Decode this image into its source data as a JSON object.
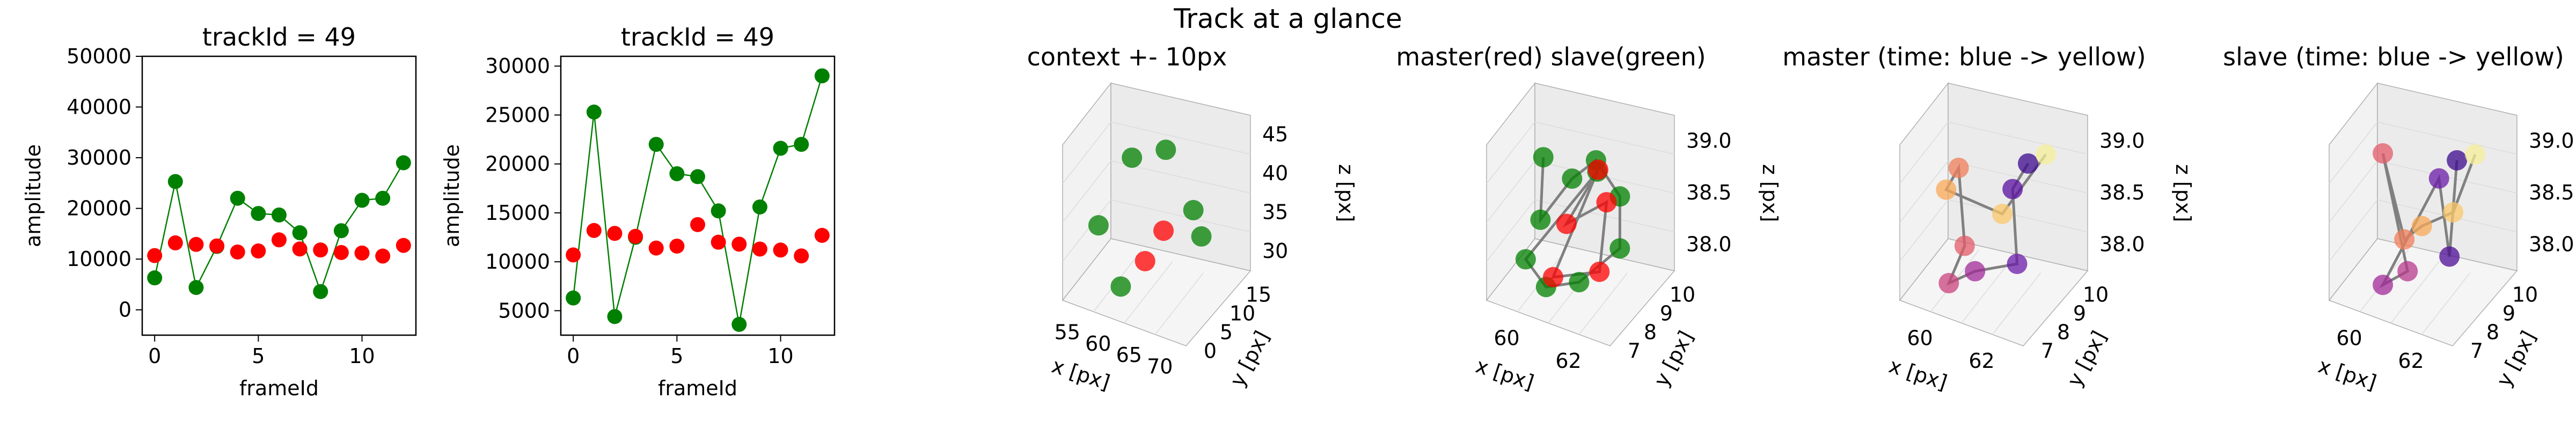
{
  "figure": {
    "suptitle": "Track at a glance"
  },
  "chart_data": [
    {
      "type": "line",
      "title": "trackId = 49",
      "xlabel": "frameId",
      "ylabel": "amplitude",
      "xlim": [
        -0.6,
        12.6
      ],
      "ylim": [
        -5000,
        50000
      ],
      "xticks": [
        0,
        5,
        10
      ],
      "yticks": [
        0,
        10000,
        20000,
        30000,
        40000,
        50000
      ],
      "x": [
        0,
        1,
        2,
        3,
        4,
        5,
        6,
        7,
        8,
        9,
        10,
        11,
        12
      ],
      "series": [
        {
          "color": "#008000",
          "line": true,
          "values": [
            6300,
            25300,
            4400,
            12500,
            22000,
            19000,
            18700,
            15200,
            3600,
            15600,
            21600,
            22000,
            29000
          ]
        },
        {
          "color": "#ff0000",
          "line": false,
          "values": [
            10700,
            13200,
            12900,
            12600,
            11400,
            11600,
            13800,
            12000,
            11800,
            11300,
            11200,
            10600,
            12700
          ]
        }
      ]
    },
    {
      "type": "line",
      "title": "trackId = 49",
      "xlabel": "frameId",
      "ylabel": "amplitude",
      "xlim": [
        -0.6,
        12.6
      ],
      "ylim": [
        2500,
        31000
      ],
      "xticks": [
        0,
        5,
        10
      ],
      "yticks": [
        5000,
        10000,
        15000,
        20000,
        25000,
        30000
      ],
      "x": [
        0,
        1,
        2,
        3,
        4,
        5,
        6,
        7,
        8,
        9,
        10,
        11,
        12
      ],
      "series": [
        {
          "color": "#008000",
          "line": true,
          "values": [
            6300,
            25300,
            4400,
            12500,
            22000,
            19000,
            18700,
            15200,
            3600,
            15600,
            21600,
            22000,
            29000
          ]
        },
        {
          "color": "#ff0000",
          "line": false,
          "values": [
            10700,
            13200,
            12900,
            12600,
            11400,
            11600,
            13800,
            12000,
            11800,
            11300,
            11200,
            10600,
            12700
          ]
        }
      ]
    },
    {
      "type": "scatter",
      "title": "context +- 10px",
      "xlabel": "x [px]",
      "ylabel": "y [px]",
      "zlabel": "z [px]",
      "xticks": [
        "55",
        "60",
        "65",
        "70"
      ],
      "yticks": [
        "0",
        "5",
        "10",
        "15"
      ],
      "zticks": [
        "30",
        "35",
        "40",
        "45"
      ],
      "points": [
        {
          "x": 60.8,
          "y": 8.6,
          "z": 38.2,
          "color": "#ff0000"
        },
        {
          "x": 61.5,
          "y": 8.2,
          "z": 38.6,
          "color": "#ff0000"
        },
        {
          "x": 60.2,
          "y": 9.1,
          "z": 38.9,
          "color": "#008000"
        },
        {
          "x": 61.0,
          "y": 9.4,
          "z": 39.0,
          "color": "#008000"
        },
        {
          "x": 62.0,
          "y": 8.9,
          "z": 38.7,
          "color": "#008000"
        },
        {
          "x": 59.6,
          "y": 8.4,
          "z": 38.4,
          "color": "#008000"
        },
        {
          "x": 60.5,
          "y": 7.8,
          "z": 38.1,
          "color": "#008000"
        },
        {
          "x": 61.8,
          "y": 9.8,
          "z": 38.3,
          "color": "#008000"
        }
      ]
    },
    {
      "type": "scatter",
      "title": "master(red) slave(green)",
      "xlabel": "x [px]",
      "ylabel": "y [px]",
      "zlabel": "z [px]",
      "xticks": [
        "60",
        "62"
      ],
      "yticks": [
        "7",
        "8",
        "9",
        "10"
      ],
      "zticks": [
        "38.0",
        "38.5",
        "39.0"
      ],
      "points": [
        {
          "x": 58.5,
          "y": 9.6,
          "z": 38.8,
          "color": "#008000"
        },
        {
          "x": 59.3,
          "y": 8.2,
          "z": 38.4,
          "color": "#008000"
        },
        {
          "x": 60.4,
          "y": 8.8,
          "z": 38.9,
          "color": "#008000"
        },
        {
          "x": 61.2,
          "y": 9.3,
          "z": 39.1,
          "color": "#008000"
        },
        {
          "x": 62.0,
          "y": 9.8,
          "z": 38.6,
          "color": "#008000"
        },
        {
          "x": 62.6,
          "y": 8.9,
          "z": 38.2,
          "color": "#008000"
        },
        {
          "x": 61.4,
          "y": 7.8,
          "z": 37.9,
          "color": "#008000"
        },
        {
          "x": 60.1,
          "y": 7.4,
          "z": 37.8,
          "color": "#008000"
        },
        {
          "x": 59.0,
          "y": 7.6,
          "z": 38.0,
          "color": "#008000"
        },
        {
          "x": 61.8,
          "y": 8.5,
          "z": 39.2,
          "color": "#008000"
        },
        {
          "x": 60.6,
          "y": 8.1,
          "z": 38.5,
          "color": "#ff0000"
        },
        {
          "x": 61.9,
          "y": 9.0,
          "z": 38.7,
          "color": "#ff0000"
        },
        {
          "x": 62.3,
          "y": 7.9,
          "z": 38.1,
          "color": "#ff0000"
        },
        {
          "x": 60.3,
          "y": 7.6,
          "z": 37.9,
          "color": "#ff0000"
        },
        {
          "x": 61.1,
          "y": 9.6,
          "z": 38.9,
          "color": "#ff0000"
        }
      ]
    },
    {
      "type": "scatter",
      "title": "master (time: blue -> yellow)",
      "xlabel": "x [px]",
      "ylabel": "y [px]",
      "zlabel": "z [px]",
      "xticks": [
        "60",
        "62"
      ],
      "yticks": [
        "7",
        "8",
        "9",
        "10"
      ],
      "zticks": [
        "38.0",
        "38.5",
        "39.0"
      ],
      "points": [
        {
          "x": 62.2,
          "y": 9.4,
          "z": 39.0,
          "color": "#3b0a8c"
        },
        {
          "x": 62.0,
          "y": 8.8,
          "z": 38.8,
          "color": "#5a0fa0"
        },
        {
          "x": 62.4,
          "y": 8.2,
          "z": 38.1,
          "color": "#6a1ba8"
        },
        {
          "x": 61.4,
          "y": 7.6,
          "z": 38.0,
          "color": "#a22a98"
        },
        {
          "x": 60.7,
          "y": 7.4,
          "z": 37.8,
          "color": "#c9417c"
        },
        {
          "x": 61.0,
          "y": 7.8,
          "z": 38.2,
          "color": "#e35b68"
        },
        {
          "x": 60.2,
          "y": 9.2,
          "z": 38.7,
          "color": "#f07d5a"
        },
        {
          "x": 60.0,
          "y": 8.8,
          "z": 38.5,
          "color": "#f9a857"
        },
        {
          "x": 61.6,
          "y": 9.0,
          "z": 38.4,
          "color": "#fbc869"
        },
        {
          "x": 62.6,
          "y": 9.7,
          "z": 39.1,
          "color": "#f7ef99"
        }
      ]
    },
    {
      "type": "scatter",
      "title": "slave (time: blue -> yellow)",
      "xlabel": "x [px]",
      "ylabel": "y [px]",
      "zlabel": "z [px]",
      "xticks": [
        "60",
        "62"
      ],
      "yticks": [
        "7",
        "8",
        "9",
        "10"
      ],
      "zticks": [
        "38.0",
        "38.5",
        "39.0"
      ],
      "points": [
        {
          "x": 62.1,
          "y": 9.6,
          "z": 39.1,
          "color": "#3b0a8c"
        },
        {
          "x": 62.5,
          "y": 8.4,
          "z": 38.2,
          "color": "#4c0c96"
        },
        {
          "x": 61.8,
          "y": 8.9,
          "z": 39.0,
          "color": "#6a1ba8"
        },
        {
          "x": 60.4,
          "y": 7.5,
          "z": 37.8,
          "color": "#a22a98"
        },
        {
          "x": 61.2,
          "y": 7.8,
          "z": 38.0,
          "color": "#b7388c"
        },
        {
          "x": 59.3,
          "y": 9.4,
          "z": 38.9,
          "color": "#e35b68"
        },
        {
          "x": 60.9,
          "y": 8.1,
          "z": 38.3,
          "color": "#f07d5a"
        },
        {
          "x": 61.3,
          "y": 8.6,
          "z": 38.4,
          "color": "#f9a857"
        },
        {
          "x": 62.3,
          "y": 9.0,
          "z": 38.6,
          "color": "#fbc869"
        },
        {
          "x": 62.7,
          "y": 9.8,
          "z": 39.2,
          "color": "#f7ef99"
        }
      ]
    }
  ]
}
